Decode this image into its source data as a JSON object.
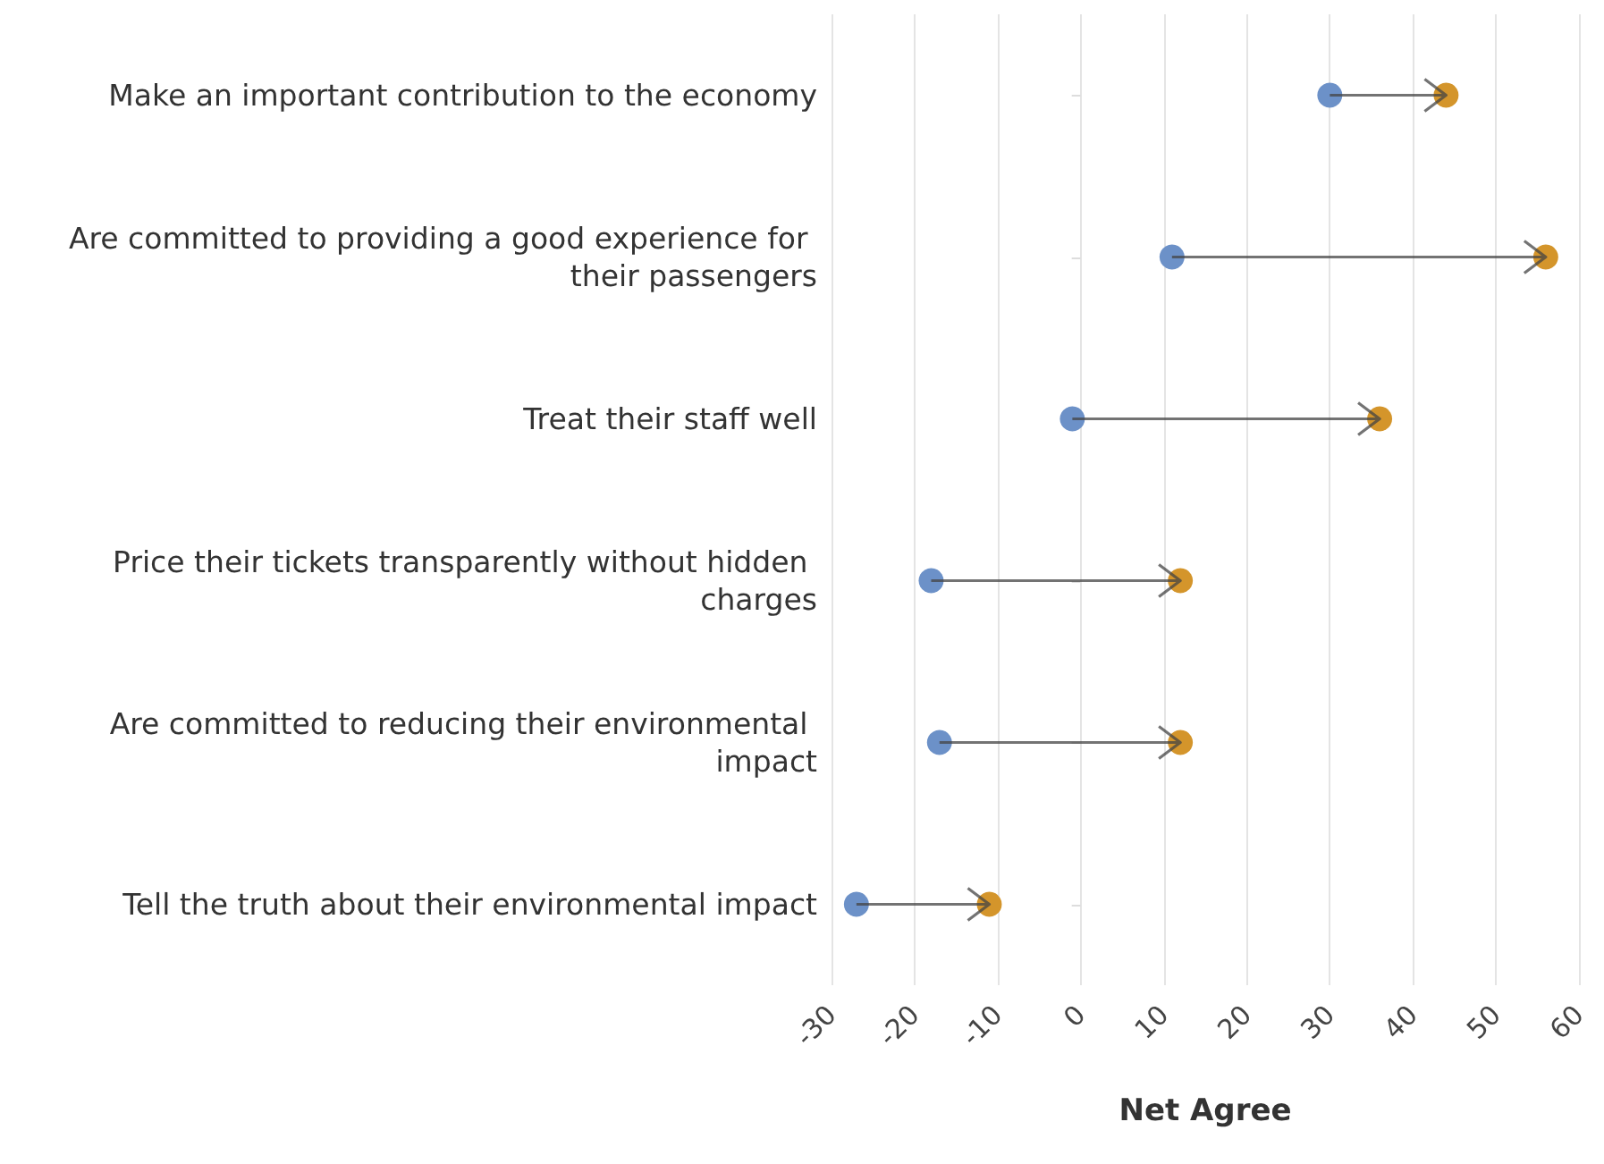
{
  "chart_data": {
    "type": "scatter",
    "xlabel": "Net Agree",
    "categories": [
      "Make an important contribution to the economy",
      "Are committed to providing a good experience for their passengers",
      "Treat their staff well",
      "Price their tickets transparently without hidden charges",
      "Are committed to reducing their environmental impact",
      "Tell the truth about their environmental impact"
    ],
    "orientation": "horizontal",
    "series": [
      {
        "color": "#6c91c8",
        "values": [
          30,
          11,
          -1,
          -18,
          -17,
          -27
        ]
      },
      {
        "color": "#d4952b",
        "values": [
          44,
          56,
          36,
          12,
          12,
          -11
        ]
      }
    ],
    "xlim": [
      -30,
      60
    ],
    "xticks": [
      -30,
      -20,
      -10,
      0,
      10,
      20,
      30,
      40,
      50,
      60
    ],
    "grid": "x",
    "marker": "circle"
  }
}
